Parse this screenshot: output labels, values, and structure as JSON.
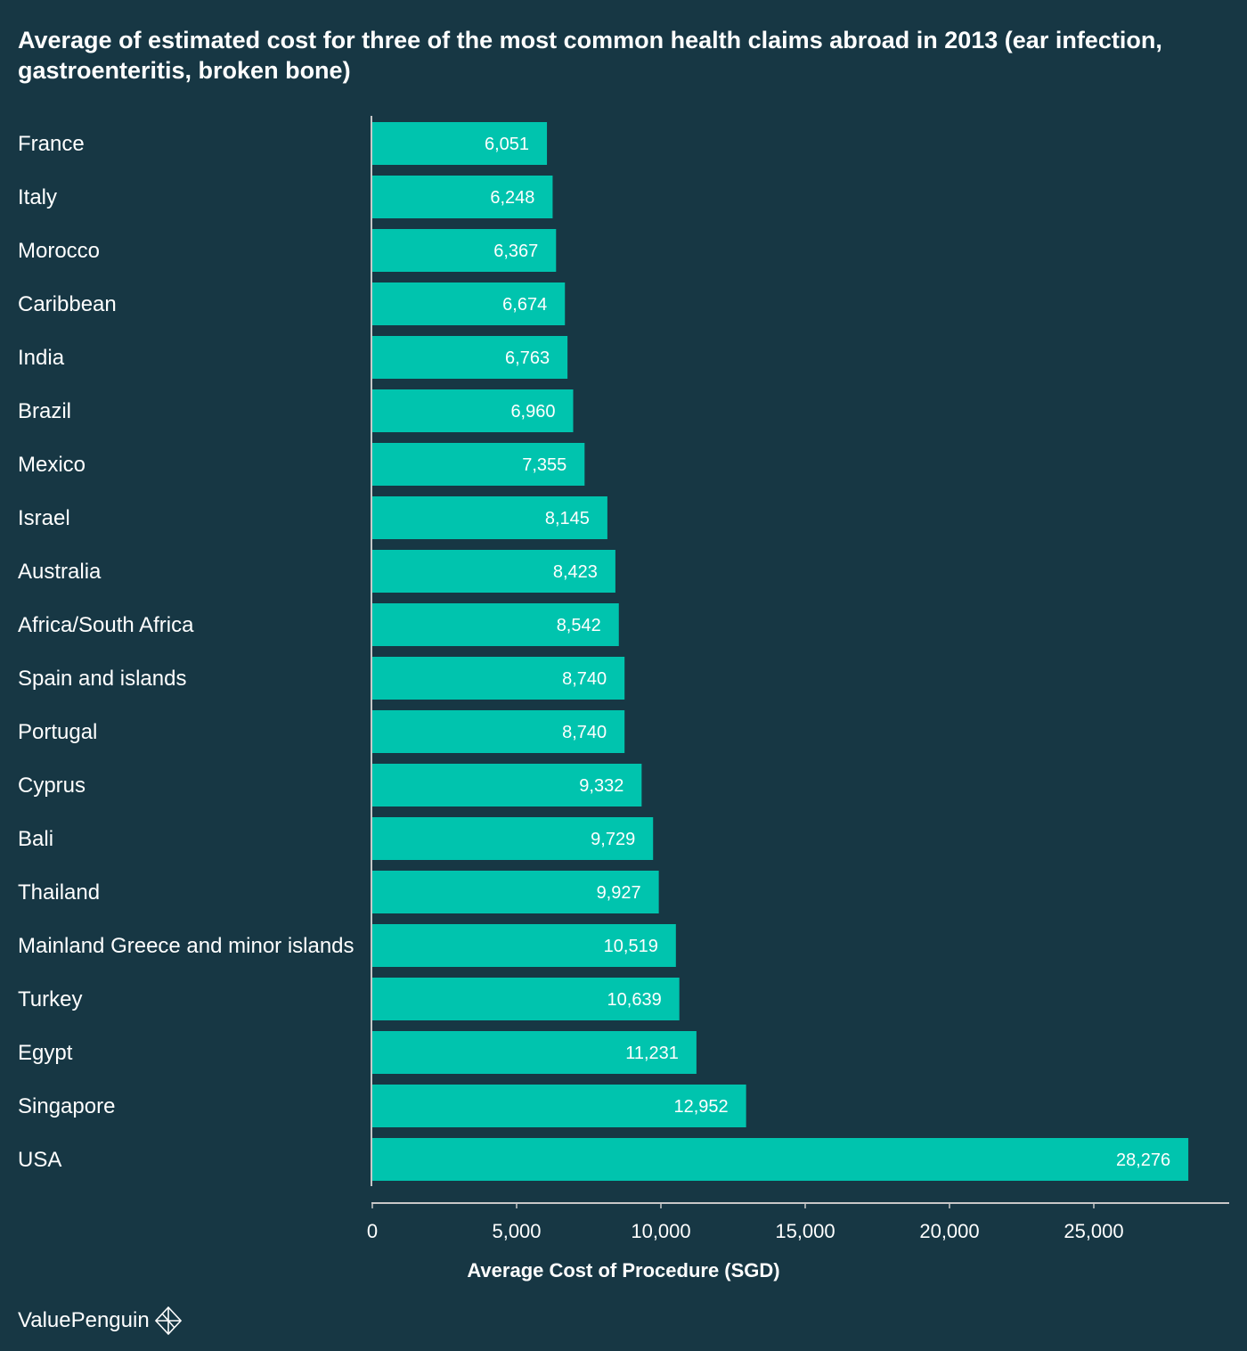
{
  "chart_data": {
    "type": "bar",
    "orientation": "horizontal",
    "title": "Average of estimated cost for three of the most common health claims abroad in 2013 (ear infection, gastroenteritis, broken bone)",
    "xlabel": "Average Cost of Procedure (SGD)",
    "ylabel": "",
    "categories": [
      "France",
      "Italy",
      "Morocco",
      "Caribbean",
      "India",
      "Brazil",
      "Mexico",
      "Israel",
      "Australia",
      "Africa/South Africa",
      "Spain and islands",
      "Portugal",
      "Cyprus",
      "Bali",
      "Thailand",
      "Mainland Greece and minor islands",
      "Turkey",
      "Egypt",
      "Singapore",
      "USA"
    ],
    "values": [
      6051,
      6248,
      6367,
      6674,
      6763,
      6960,
      7355,
      8145,
      8423,
      8542,
      8740,
      8740,
      9332,
      9729,
      9927,
      10519,
      10639,
      11231,
      12952,
      28276
    ],
    "value_labels": [
      "6,051",
      "6,248",
      "6,367",
      "6,674",
      "6,763",
      "6,960",
      "7,355",
      "8,145",
      "8,423",
      "8,542",
      "8,740",
      "8,740",
      "9,332",
      "9,729",
      "9,927",
      "10,519",
      "10,639",
      "11,231",
      "12,952",
      "28,276"
    ],
    "xticks": [
      0,
      5000,
      10000,
      15000,
      20000,
      25000
    ],
    "xtick_labels": [
      "0",
      "5,000",
      "10,000",
      "15,000",
      "20,000",
      "25,000"
    ],
    "xlim": [
      0,
      29800
    ],
    "grid": false,
    "colors": {
      "bar": "#00C4AE",
      "background": "#173744",
      "text": "#FFFFFF",
      "axis": "#C8C8C8"
    }
  },
  "brand": {
    "name": "ValuePenguin",
    "icon": "valuepenguin-logo-icon"
  }
}
